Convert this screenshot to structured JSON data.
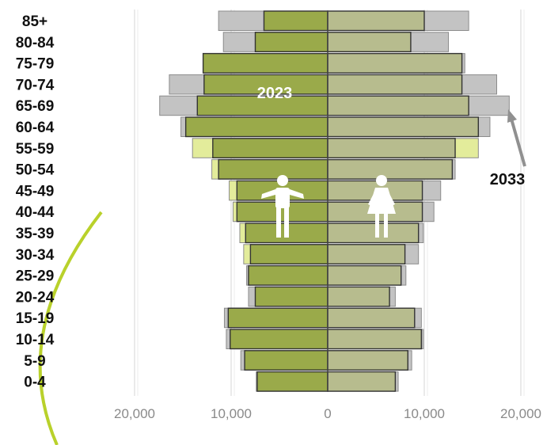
{
  "chart_data": {
    "type": "bar",
    "subtype": "population-pyramid",
    "categories": [
      "85+",
      "80-84",
      "75-79",
      "70-74",
      "65-69",
      "60-64",
      "55-59",
      "50-54",
      "45-49",
      "40-44",
      "35-39",
      "30-34",
      "25-29",
      "20-24",
      "15-19",
      "10-14",
      "5-9",
      "0-4"
    ],
    "series": [
      {
        "side": "left",
        "year": "2033",
        "values": [
          11300,
          10800,
          12800,
          16400,
          17400,
          15200,
          14000,
          12000,
          10200,
          9800,
          9100,
          8700,
          8400,
          8200,
          10700,
          10500,
          9000,
          7400
        ]
      },
      {
        "side": "left",
        "year": "2023",
        "values": [
          6600,
          7500,
          12900,
          12800,
          13500,
          14700,
          11900,
          11300,
          9400,
          9400,
          8500,
          8000,
          8200,
          7500,
          10300,
          10100,
          8600,
          7300
        ]
      },
      {
        "side": "right",
        "year": "2033",
        "values": [
          14600,
          12500,
          14200,
          17500,
          18800,
          16800,
          15600,
          13200,
          11700,
          11000,
          9900,
          9400,
          8100,
          7000,
          9700,
          9900,
          8700,
          7300
        ]
      },
      {
        "side": "right",
        "year": "2023",
        "values": [
          10000,
          8600,
          13900,
          13900,
          14600,
          15600,
          13200,
          12900,
          9800,
          9800,
          9400,
          8000,
          7600,
          6400,
          9000,
          9700,
          8300,
          7000
        ]
      }
    ],
    "xticks": [
      "20,000",
      "10,000",
      "0",
      "10,000",
      "20,000"
    ],
    "xlim": [
      -20000,
      20000
    ],
    "annotations": [
      "2023",
      "2033"
    ],
    "colors": {
      "left_2023": "#9aaa4a",
      "left_2033": "#c3c3c3",
      "left_2033_excess": "#e3ec9b",
      "right_2023": "#b7bc8e",
      "right_2033": "#c3c3c3",
      "right_2033_excess": "#e3ec9b",
      "outline": "#333333",
      "gridline": "#dddddd",
      "axis_line": "#444444",
      "accent_arc": "#b9d12b",
      "arrow": "#909090",
      "icon": "#ffffff",
      "age_text": "#111111",
      "tick_text": "#8a8a8a",
      "label_2023": "#ffffff",
      "label_2033": "#111111"
    },
    "icons": [
      "male-icon",
      "female-icon"
    ],
    "grid": true,
    "legend": "none"
  }
}
